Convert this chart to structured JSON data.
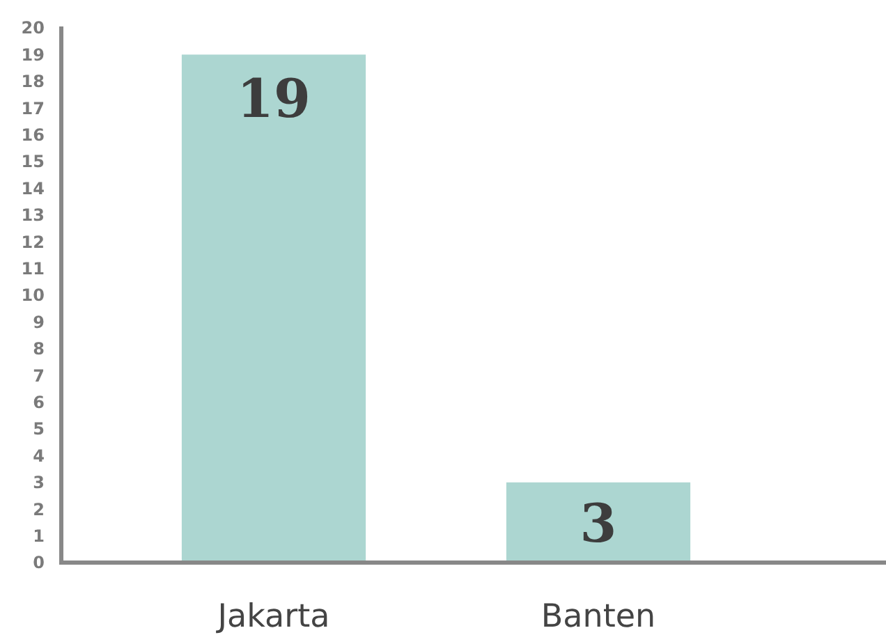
{
  "chart_data": {
    "type": "bar",
    "categories": [
      "Jakarta",
      "Banten"
    ],
    "values": [
      19,
      3
    ],
    "color": "#acd6d1",
    "ylim": [
      0,
      20
    ],
    "yticks": [
      0,
      1,
      2,
      3,
      4,
      5,
      6,
      7,
      8,
      9,
      10,
      11,
      12,
      13,
      14,
      15,
      16,
      17,
      18,
      19,
      20
    ],
    "data_labels": true
  }
}
